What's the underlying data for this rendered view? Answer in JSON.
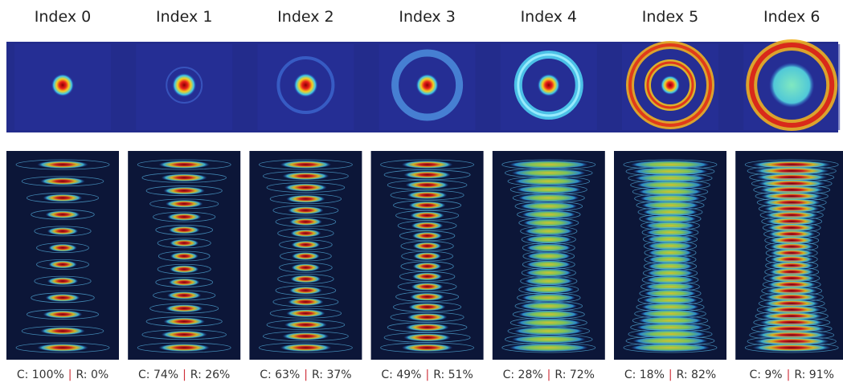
{
  "columns": [
    {
      "title": "Index 0",
      "c": "C: 100%",
      "r": "R: 0%"
    },
    {
      "title": "Index 1",
      "c": "C: 74%",
      "r": "R: 26%"
    },
    {
      "title": "Index 2",
      "c": "C: 63%",
      "r": "R: 37%"
    },
    {
      "title": "Index 3",
      "c": "C: 49%",
      "r": "R: 51%"
    },
    {
      "title": "Index 4",
      "c": "C: 28%",
      "r": "R: 72%"
    },
    {
      "title": "Index 5",
      "c": "C: 18%",
      "r": "R: 82%"
    },
    {
      "title": "Index 6",
      "c": "C: 9%",
      "r": "R: 91%"
    }
  ],
  "separator": "|"
}
